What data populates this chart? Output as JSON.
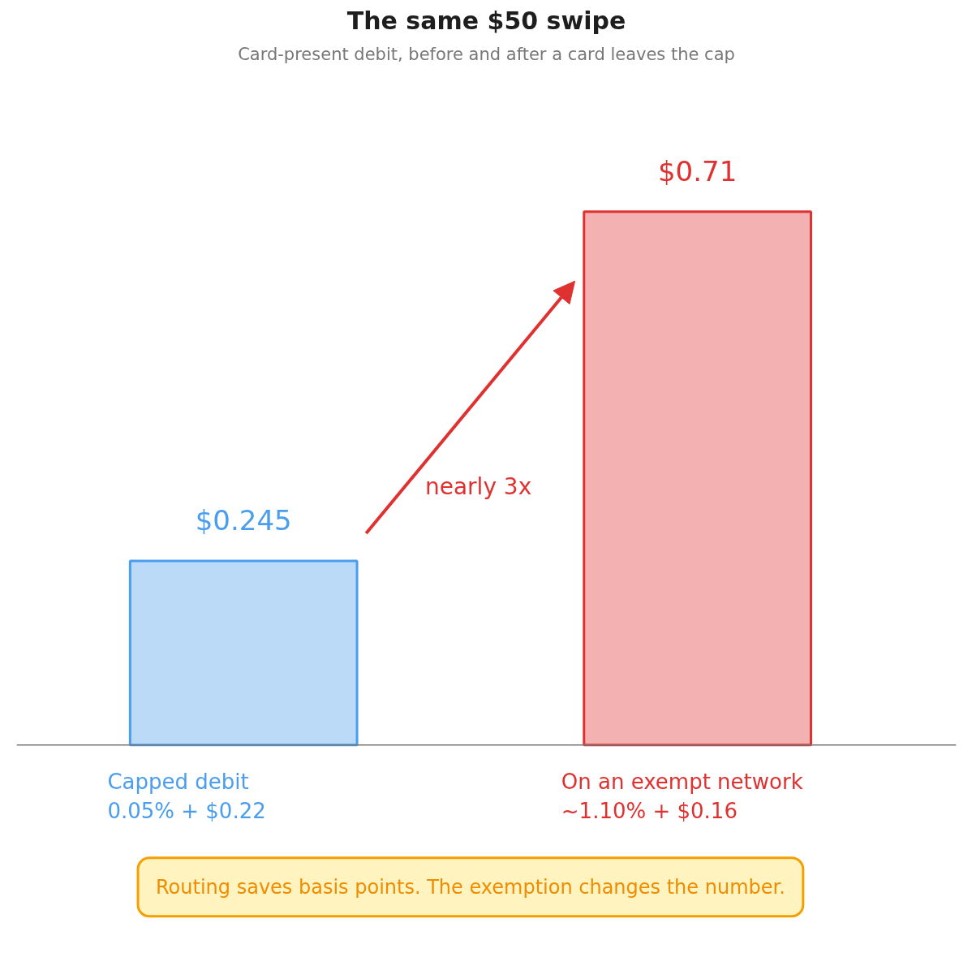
{
  "chart_data": {
    "type": "bar",
    "title": "The same $50 swipe",
    "subtitle": "Card-present debit, before and after a card leaves the cap",
    "categories": [
      "Capped debit\n0.05% + $0.22",
      "On an exempt network\n~1.10% + $0.16"
    ],
    "values": [
      0.245,
      0.71
    ],
    "value_labels": [
      "$0.245",
      "$0.71"
    ],
    "colors": [
      "#4a9eed",
      "#e03131"
    ],
    "annotations": [
      "nearly 3x",
      "Routing saves basis points. The exemption changes the number."
    ],
    "grid": false
  }
}
